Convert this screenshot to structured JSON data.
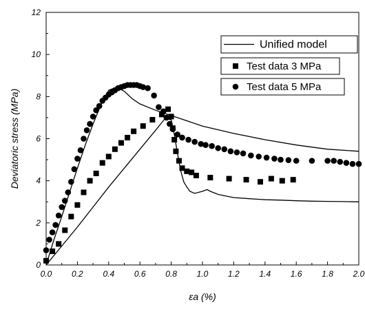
{
  "chart_data": {
    "type": "line",
    "xlabel": "εa (%)",
    "ylabel": "Deviatoric stress (MPa)",
    "xlim": [
      0,
      2.0
    ],
    "ylim": [
      0,
      12
    ],
    "xticks": [
      "0.0",
      "0.2",
      "0.4",
      "0.6",
      "0.8",
      "1.0",
      "1.2",
      "1.4",
      "1.6",
      "1.8",
      "2.0"
    ],
    "yticks": [
      "0",
      "2",
      "4",
      "6",
      "8",
      "10",
      "12"
    ],
    "legend_position": "top-right",
    "series": [
      {
        "name": "Unified model",
        "kind": "line",
        "color": "#000000",
        "x": [
          0,
          0.05,
          0.1,
          0.15,
          0.2,
          0.25,
          0.3,
          0.35,
          0.4,
          0.45,
          0.5,
          0.55,
          0.6,
          0.7,
          0.8,
          0.9,
          1.0,
          1.2,
          1.4,
          1.6,
          1.8,
          2.0
        ],
        "y": [
          0,
          1.2,
          2.3,
          3.45,
          4.6,
          5.7,
          6.7,
          7.6,
          8.3,
          8.45,
          8.25,
          7.9,
          7.65,
          7.35,
          7.1,
          6.85,
          6.6,
          6.25,
          5.95,
          5.7,
          5.5,
          5.4
        ]
      },
      {
        "name": "Unified model",
        "kind": "line",
        "color": "#000000",
        "x": [
          0,
          0.1,
          0.2,
          0.3,
          0.4,
          0.5,
          0.6,
          0.7,
          0.76,
          0.8,
          0.82,
          0.84,
          0.86,
          0.88,
          0.9,
          0.92,
          0.95,
          1.0,
          1.03,
          1.05,
          1.1,
          1.2,
          1.3,
          1.4,
          1.5,
          1.6,
          1.7,
          1.8,
          1.9,
          2.0
        ],
        "y": [
          0,
          0.9,
          1.8,
          2.75,
          3.7,
          4.6,
          5.5,
          6.4,
          6.95,
          6.9,
          6.2,
          5.3,
          4.5,
          3.95,
          3.7,
          3.5,
          3.4,
          3.5,
          3.58,
          3.5,
          3.35,
          3.2,
          3.15,
          3.1,
          3.08,
          3.05,
          3.03,
          3.02,
          3.01,
          3.0
        ]
      },
      {
        "name": "Test data 3 MPa",
        "kind": "scatter",
        "marker": "square",
        "color": "#000000",
        "x": [
          0.0,
          0.04,
          0.08,
          0.12,
          0.16,
          0.2,
          0.24,
          0.28,
          0.32,
          0.36,
          0.4,
          0.44,
          0.48,
          0.52,
          0.56,
          0.62,
          0.68,
          0.74,
          0.78,
          0.8,
          0.81,
          0.82,
          0.83,
          0.85,
          0.87,
          0.9,
          0.93,
          0.96,
          1.05,
          1.17,
          1.28,
          1.37,
          1.44,
          1.51,
          1.58
        ],
        "y": [
          0.2,
          0.65,
          1.0,
          1.65,
          2.3,
          2.85,
          3.45,
          4.0,
          4.35,
          4.85,
          5.15,
          5.5,
          5.8,
          6.05,
          6.35,
          6.6,
          6.9,
          7.15,
          7.4,
          7.05,
          6.5,
          5.95,
          5.4,
          4.95,
          4.6,
          4.45,
          4.4,
          4.25,
          4.15,
          4.1,
          4.05,
          3.95,
          4.1,
          4.0,
          4.05
        ]
      },
      {
        "name": "Test data 5 MPa",
        "kind": "scatter",
        "marker": "circle",
        "color": "#000000",
        "x": [
          0.0,
          0.02,
          0.04,
          0.06,
          0.08,
          0.1,
          0.12,
          0.14,
          0.16,
          0.18,
          0.2,
          0.22,
          0.24,
          0.26,
          0.28,
          0.3,
          0.32,
          0.34,
          0.36,
          0.38,
          0.4,
          0.42,
          0.44,
          0.46,
          0.48,
          0.5,
          0.52,
          0.54,
          0.56,
          0.58,
          0.6,
          0.62,
          0.65,
          0.69,
          0.72,
          0.75,
          0.77,
          0.79,
          0.81,
          0.84,
          0.87,
          0.91,
          0.95,
          0.99,
          1.02,
          1.06,
          1.1,
          1.14,
          1.18,
          1.22,
          1.26,
          1.31,
          1.36,
          1.41,
          1.46,
          1.5,
          1.55,
          1.6,
          1.7,
          1.8,
          1.84,
          1.88,
          1.92,
          1.96,
          2.0
        ],
        "y": [
          0.7,
          1.2,
          1.55,
          1.9,
          2.35,
          2.75,
          3.05,
          3.45,
          3.95,
          4.55,
          5.05,
          5.45,
          6.0,
          6.4,
          6.7,
          7.05,
          7.35,
          7.55,
          7.8,
          7.95,
          8.1,
          8.2,
          8.3,
          8.4,
          8.45,
          8.5,
          8.55,
          8.55,
          8.55,
          8.55,
          8.5,
          8.45,
          8.4,
          8.05,
          7.5,
          7.3,
          7.0,
          6.7,
          6.45,
          6.2,
          6.05,
          5.95,
          5.85,
          5.75,
          5.7,
          5.65,
          5.55,
          5.5,
          5.4,
          5.35,
          5.3,
          5.2,
          5.15,
          5.1,
          5.05,
          5.0,
          4.98,
          4.95,
          4.95,
          4.95,
          4.95,
          4.9,
          4.85,
          4.8,
          4.8
        ]
      }
    ],
    "legend": [
      {
        "label": "Unified model",
        "symbol": "line"
      },
      {
        "label": "Test data 3 MPa",
        "symbol": "square"
      },
      {
        "label": "Test data 5 MPa",
        "symbol": "circle"
      }
    ]
  }
}
